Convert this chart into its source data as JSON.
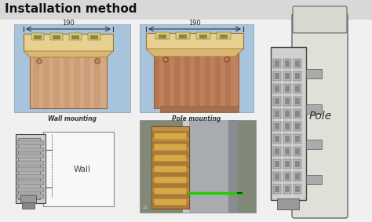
{
  "title": "Installation method",
  "title_fontsize": 11,
  "title_fontweight": "bold",
  "bg_color": "#f0f0f0",
  "header_bg": "#e0e0e0",
  "label_wall_mount": "Wall mounting",
  "label_pole_mount": "Pole mounting",
  "label_wall_text": "Wall",
  "label_pole_text": "Pole",
  "dim_text": "190",
  "blue_bg": "#a8c4dc",
  "box_body_lt": "#d4a882",
  "box_body_dk": "#b8845a",
  "box_top_color": "#e8d090",
  "box_top_dark": "#c8b060",
  "pole_gray": "#b8bcc0",
  "pole_gray2": "#989ca0",
  "green_line": "#22cc00",
  "diagram_gray": "#888888",
  "wall_white": "#f8f8f8",
  "cable_brown": "#a06030",
  "striped_brown": "#c09050",
  "striped_dark": "#8a6030",
  "number12": "12"
}
